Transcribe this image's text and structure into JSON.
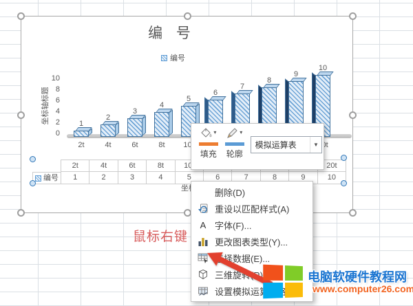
{
  "chart_data": {
    "type": "bar",
    "title": "编 号",
    "series_name": "编号",
    "legend": [
      "编号"
    ],
    "categories": [
      "2t",
      "4t",
      "6t",
      "8t",
      "10t",
      "12t",
      "14t",
      "16t",
      "18t",
      "20t"
    ],
    "values": [
      1,
      2,
      3,
      4,
      5,
      6,
      7,
      8,
      9,
      10
    ],
    "data_labels": [
      1,
      2,
      3,
      4,
      5,
      6,
      7,
      8,
      9,
      10
    ],
    "xlabel": "坐标轴标题",
    "ylabel": "坐标轴标题",
    "ylim": [
      0,
      10
    ],
    "yticks": [
      0,
      2,
      4,
      6,
      8,
      10
    ],
    "grid": false,
    "legend_position": "top",
    "style": "3d-clustered-column-hatched"
  },
  "data_table": {
    "row_label": "编号",
    "headers": [
      "2t",
      "4t",
      "6t",
      "8t",
      "10t",
      "12t",
      "14t",
      "16t",
      "18t",
      "20t"
    ],
    "values": [
      1,
      2,
      3,
      4,
      5,
      6,
      7,
      8,
      9,
      10
    ]
  },
  "mini_toolbar": {
    "fill_label": "填充",
    "outline_label": "轮廓",
    "combo_value": "模拟运算表"
  },
  "context_menu": {
    "items": [
      {
        "label": "删除(D)",
        "icon": "none"
      },
      {
        "label": "重设以匹配样式(A)",
        "icon": "reset-style-icon"
      },
      {
        "label": "字体(F)...",
        "icon": "font-icon"
      },
      {
        "label": "更改图表类型(Y)...",
        "icon": "chart-type-icon"
      },
      {
        "label": "选择数据(E)...",
        "icon": "select-data-icon"
      },
      {
        "label": "三维旋转(R)...",
        "icon": "rotation-3d-icon"
      },
      {
        "label": "设置模拟运算表格式...",
        "icon": "format-datatable-icon"
      }
    ]
  },
  "annotation": {
    "red_text": "鼠标右键"
  },
  "watermark": {
    "site_name": "电脑软硬件教程网",
    "site_url": "www.computer26.com"
  },
  "colors": {
    "fill_swatch": "#ed7d31",
    "outline_swatch": "#5b9bd5",
    "bar_outline": "#41719c",
    "bar_dark_side": "#1e3f66",
    "annotation_red": "#d85c5c",
    "arrow_red": "#e2402e",
    "watermark_blue": "#1b75d1",
    "watermark_orange": "#f26522",
    "logo_orange": "#f1511b",
    "logo_green": "#80cc28",
    "logo_blue": "#00adef",
    "logo_yellow": "#fbbc09"
  }
}
